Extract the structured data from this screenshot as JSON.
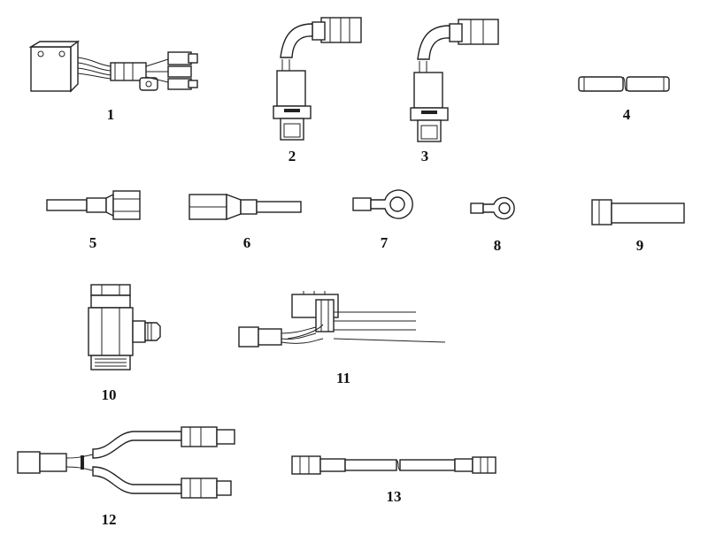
{
  "parts": [
    {
      "id": "part-1",
      "label": "1"
    },
    {
      "id": "part-2",
      "label": "2"
    },
    {
      "id": "part-3",
      "label": "3"
    },
    {
      "id": "part-4",
      "label": "4"
    },
    {
      "id": "part-5",
      "label": "5"
    },
    {
      "id": "part-6",
      "label": "6"
    },
    {
      "id": "part-7",
      "label": "7"
    },
    {
      "id": "part-8",
      "label": "8"
    },
    {
      "id": "part-9",
      "label": "9"
    },
    {
      "id": "part-10",
      "label": "10"
    },
    {
      "id": "part-11",
      "label": "11"
    },
    {
      "id": "part-12",
      "label": "12"
    },
    {
      "id": "part-13",
      "label": "13"
    }
  ]
}
